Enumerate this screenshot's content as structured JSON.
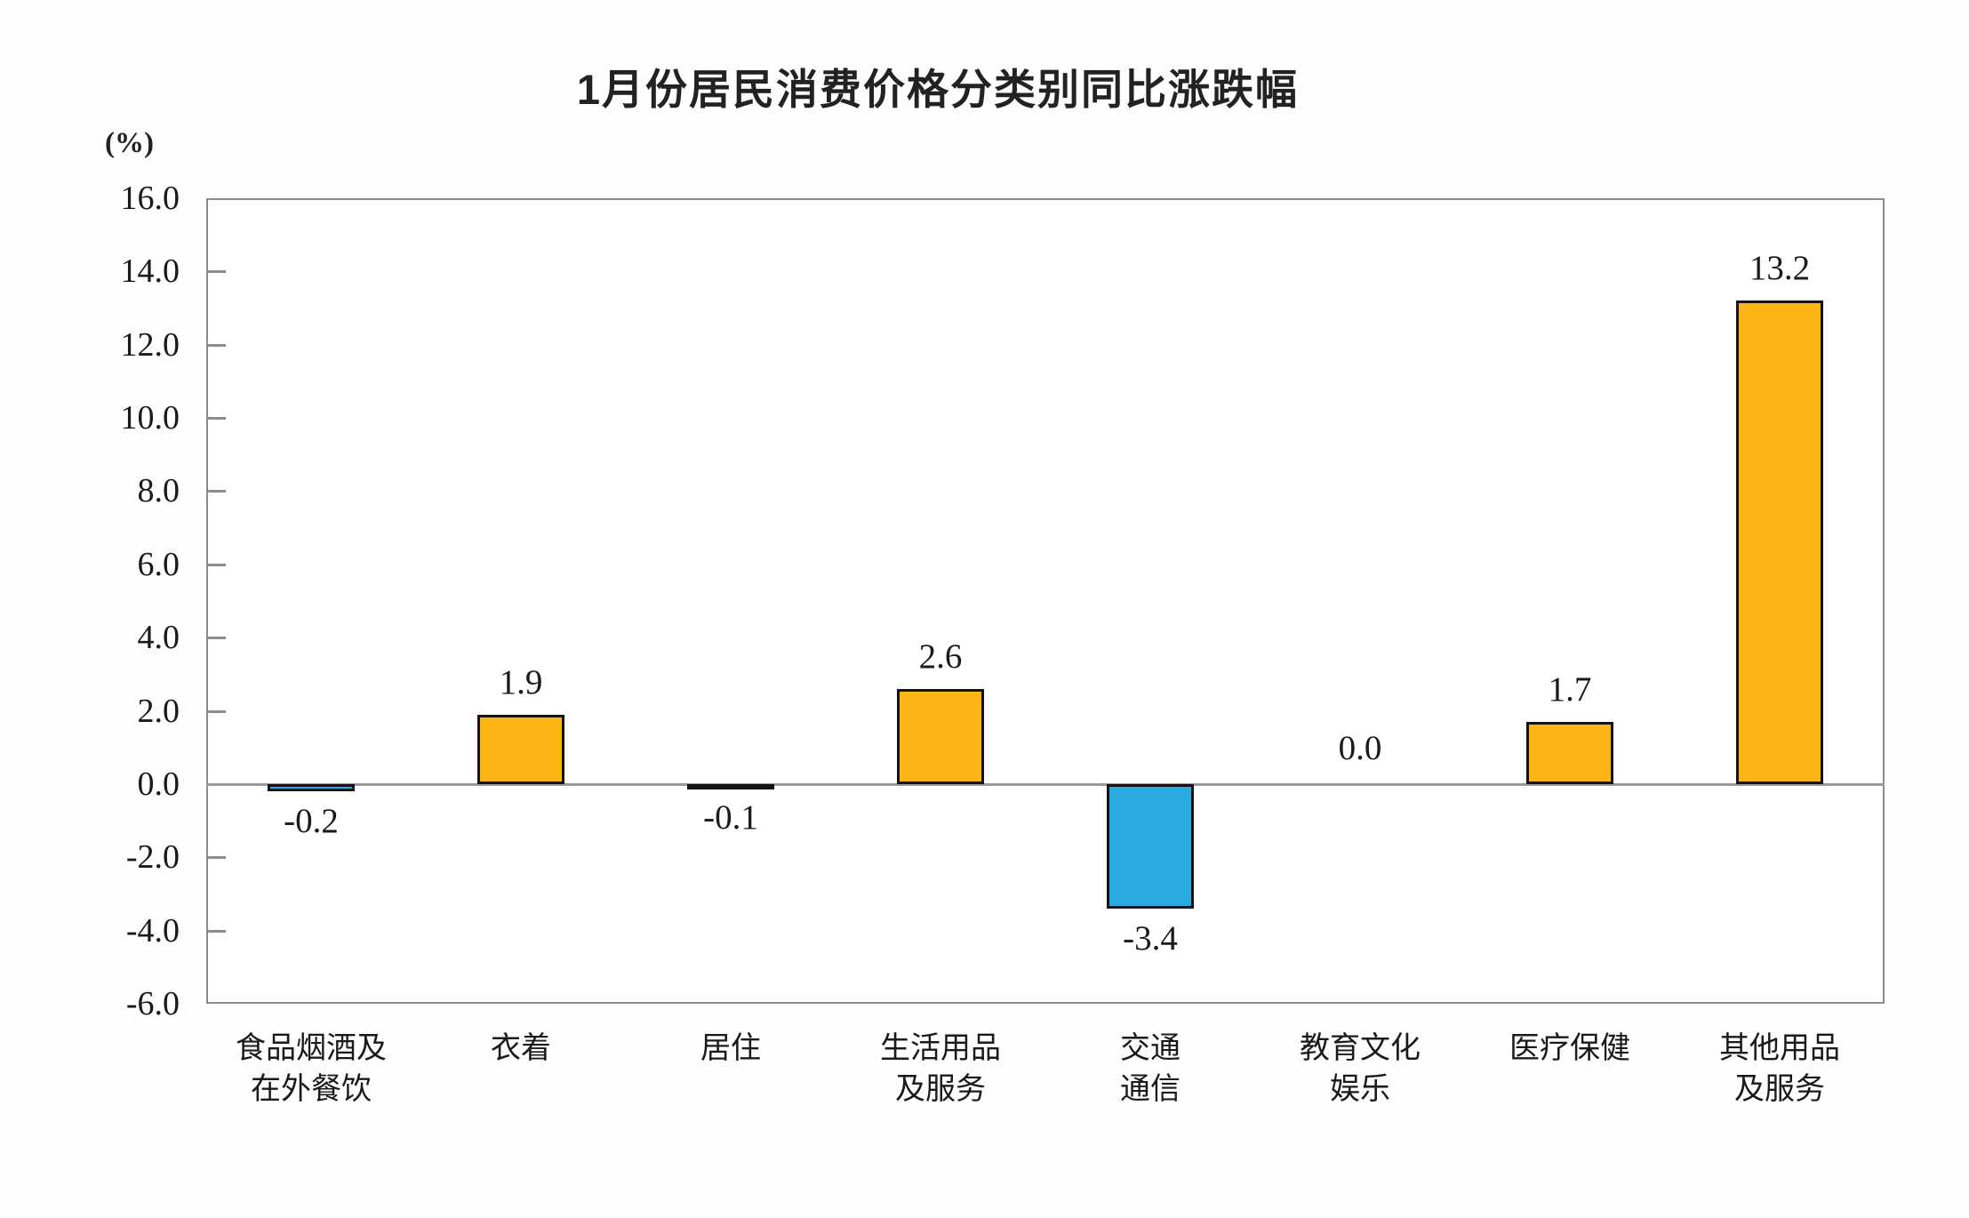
{
  "chart_data": {
    "type": "bar",
    "title": "1月份居民消费价格分类别同比涨跌幅",
    "unit_label": "(%)",
    "categories": [
      "食品烟酒及\n在外餐饮",
      "衣着",
      "居住",
      "生活用品\n及服务",
      "交通\n通信",
      "教育文化\n娱乐",
      "医疗保健",
      "其他用品\n及服务"
    ],
    "values": [
      -0.2,
      1.9,
      -0.1,
      2.6,
      -3.4,
      0.0,
      1.7,
      13.2
    ],
    "value_labels": [
      "-0.2",
      "1.9",
      "-0.1",
      "2.6",
      "-3.4",
      "0.0",
      "1.7",
      "13.2"
    ],
    "xlabel": "",
    "ylabel": "(%)",
    "ylim": [
      -6.0,
      16.0
    ],
    "ytick_step": 2.0,
    "yticks": [
      "16.0",
      "14.0",
      "12.0",
      "10.0",
      "8.0",
      "6.0",
      "4.0",
      "2.0",
      "0.0",
      "-2.0",
      "-4.0",
      "-6.0"
    ],
    "grid": false,
    "legend_position": "none",
    "colors": {
      "positive_bar": "#FBB515",
      "negative_bar": "#29ABE2",
      "bar_outline": "#141414",
      "axis_frame": "#8C8C8C",
      "text": "#1A1A1A"
    }
  }
}
